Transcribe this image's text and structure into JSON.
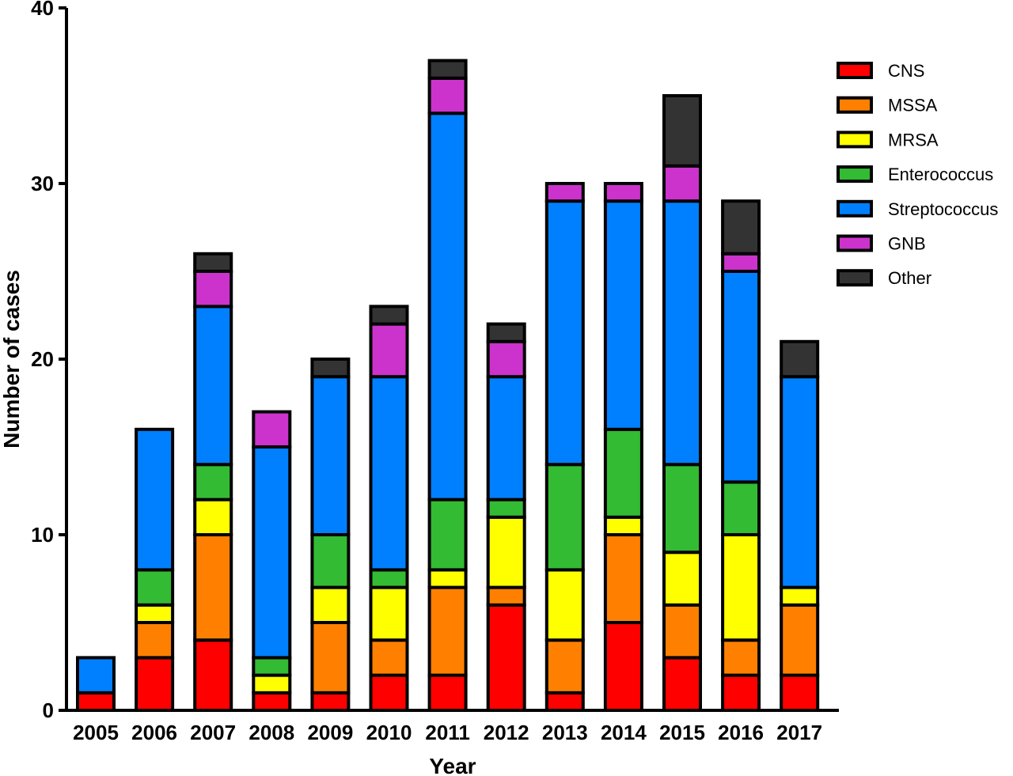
{
  "chart_data": {
    "type": "bar",
    "stacked": true,
    "xlabel": "Year",
    "ylabel": "Number of cases",
    "ylim": [
      0,
      40
    ],
    "yticks": [
      0,
      10,
      20,
      30,
      40
    ],
    "categories": [
      "2005",
      "2006",
      "2007",
      "2008",
      "2009",
      "2010",
      "2011",
      "2012",
      "2013",
      "2014",
      "2015",
      "2016",
      "2017"
    ],
    "series": [
      {
        "name": "CNS",
        "color": "#ff0000",
        "values": [
          1,
          3,
          4,
          1,
          1,
          2,
          2,
          6,
          1,
          5,
          3,
          2,
          2
        ]
      },
      {
        "name": "MSSA",
        "color": "#ff8000",
        "values": [
          0,
          2,
          6,
          0,
          4,
          2,
          5,
          1,
          3,
          5,
          3,
          2,
          4
        ]
      },
      {
        "name": "MRSA",
        "color": "#ffff00",
        "values": [
          0,
          1,
          2,
          1,
          2,
          3,
          1,
          4,
          4,
          1,
          3,
          6,
          1
        ]
      },
      {
        "name": "Enterococcus",
        "color": "#33bb33",
        "values": [
          0,
          2,
          2,
          1,
          3,
          1,
          4,
          1,
          6,
          5,
          5,
          3,
          0
        ]
      },
      {
        "name": "Streptococcus",
        "color": "#0080ff",
        "values": [
          2,
          8,
          9,
          12,
          9,
          11,
          22,
          7,
          15,
          13,
          15,
          12,
          12
        ]
      },
      {
        "name": "GNB",
        "color": "#cc33cc",
        "values": [
          0,
          0,
          2,
          2,
          0,
          3,
          2,
          2,
          1,
          1,
          2,
          1,
          0
        ]
      },
      {
        "name": "Other",
        "color": "#333333",
        "values": [
          0,
          0,
          1,
          0,
          1,
          1,
          1,
          1,
          0,
          0,
          4,
          3,
          2
        ]
      }
    ],
    "legend_position": "top-right"
  }
}
